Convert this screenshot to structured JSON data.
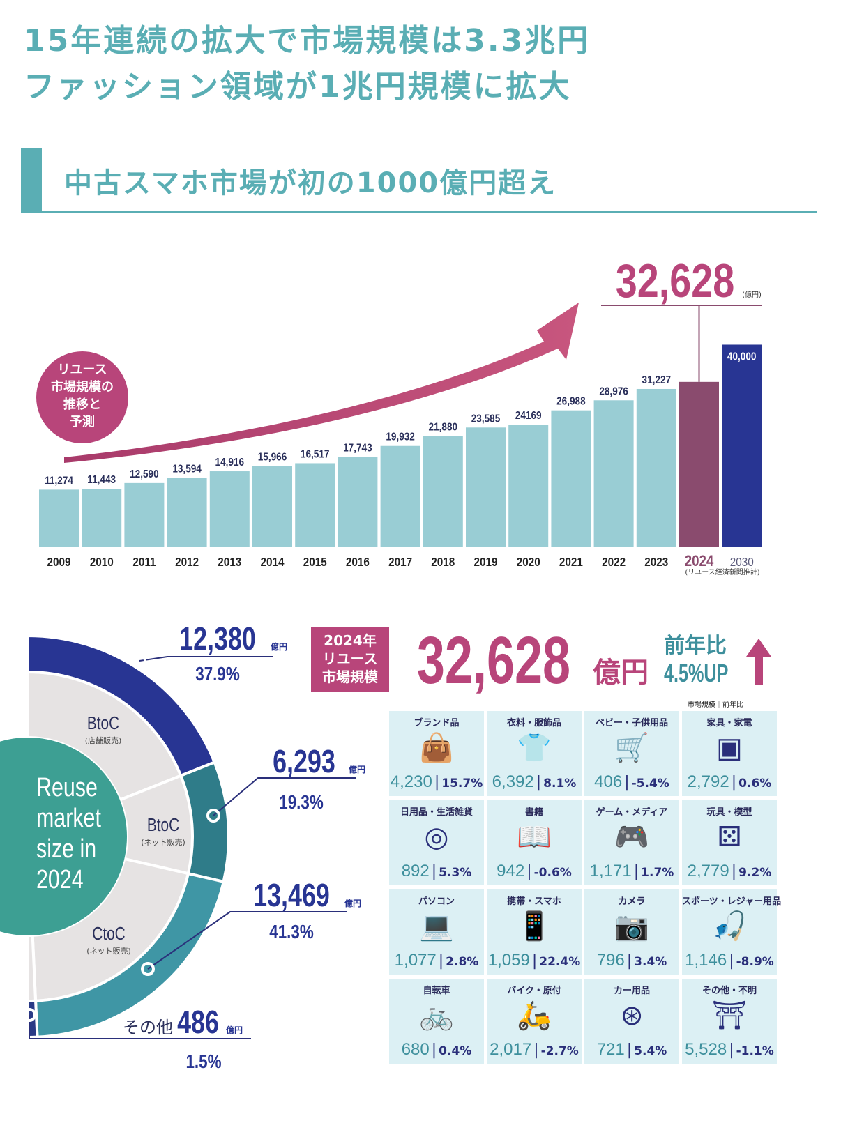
{
  "headline": {
    "line1": "15年連続の拡大で市場規模は3.3兆円",
    "line2": "ファッション領域が1兆円規模に拡大"
  },
  "section": {
    "title": "中古スマホ市場が初の1000億円超え"
  },
  "chart_data": [
    {
      "type": "bar",
      "title": "リユース市場規模の推移と予測",
      "categories": [
        "2009",
        "2010",
        "2011",
        "2012",
        "2013",
        "2014",
        "2015",
        "2016",
        "2017",
        "2018",
        "2019",
        "2020",
        "2021",
        "2022",
        "2023",
        "2024",
        "2030"
      ],
      "values": [
        11274,
        11443,
        12590,
        13594,
        14916,
        15966,
        16517,
        17743,
        19932,
        21880,
        23585,
        24169,
        26988,
        28976,
        31227,
        32628,
        40000
      ],
      "value_labels": [
        "11,274",
        "11,443",
        "12,590",
        "13,594",
        "14,916",
        "15,966",
        "16,517",
        "17,743",
        "19,932",
        "21,880",
        "23,585",
        "24169",
        "26,988",
        "28,976",
        "31,227",
        "",
        "40,000"
      ],
      "ylim": [
        0,
        42000
      ],
      "unit": "億円",
      "highlight": {
        "value": "32,628",
        "unit": "(億円)"
      },
      "note": "(リユース経済新聞推計)",
      "badge_lines": [
        "リユース",
        "市場規模の",
        "推移と",
        "予測"
      ],
      "colors": {
        "bar": "#99cdd4",
        "highlight": "#8a4b6e",
        "forecast": "#283593",
        "accent": "#b8457a"
      }
    },
    {
      "type": "pie",
      "title": "Reuse market size in 2024",
      "center_lines": [
        "Reuse",
        "market",
        "size in",
        "2024"
      ],
      "segments": [
        {
          "name": "BtoC",
          "sub": "(店舗販売)",
          "value": 12380,
          "value_label": "12,380",
          "unit": "億円",
          "pct": "37.9",
          "color": "#283593"
        },
        {
          "name": "BtoC",
          "sub": "(ネット販売)",
          "value": 6293,
          "value_label": "6,293",
          "unit": "億円",
          "pct": "19.3",
          "color": "#2f7c89"
        },
        {
          "name": "CtoC",
          "sub": "(ネット販売)",
          "value": 13469,
          "value_label": "13,469",
          "unit": "億円",
          "pct": "41.3",
          "color": "#3f96a5"
        },
        {
          "name": "その他",
          "sub": "",
          "value": 486,
          "value_label": "486",
          "unit": "億円",
          "pct": "1.5",
          "color": "#2a3a86"
        }
      ]
    }
  ],
  "summary": {
    "badge_lines": [
      "2024年",
      "リユース",
      "市場規模"
    ],
    "value": "32,628",
    "unit": "億円",
    "yoy_label": "前年比",
    "yoy_value": "4.5%UP",
    "tile_legend": "市場規模｜前年比"
  },
  "categories": [
    {
      "name": "ブランド品",
      "value": "4,230",
      "pct": "15.7%",
      "icon": "handbag-icon",
      "glyph": "👜"
    },
    {
      "name": "衣料・服飾品",
      "value": "6,392",
      "pct": "8.1%",
      "icon": "shirt-icon",
      "glyph": "👕"
    },
    {
      "name": "ベビー・子供用品",
      "value": "406",
      "pct": "-5.4%",
      "icon": "stroller-icon",
      "glyph": "🛒"
    },
    {
      "name": "家具・家電",
      "value": "2,792",
      "pct": "0.6%",
      "icon": "microwave-icon",
      "glyph": "▣"
    },
    {
      "name": "日用品・生活雑貨",
      "value": "892",
      "pct": "5.3%",
      "icon": "plate-icon",
      "glyph": "◎"
    },
    {
      "name": "書籍",
      "value": "942",
      "pct": "-0.6%",
      "icon": "book-icon",
      "glyph": "📖"
    },
    {
      "name": "ゲーム・メディア",
      "value": "1,171",
      "pct": "1.7%",
      "icon": "game-console-icon",
      "glyph": "🎮"
    },
    {
      "name": "玩具・模型",
      "value": "2,779",
      "pct": "9.2%",
      "icon": "toy-icon",
      "glyph": "⚄"
    },
    {
      "name": "パソコン",
      "value": "1,077",
      "pct": "2.8%",
      "icon": "laptop-icon",
      "glyph": "💻"
    },
    {
      "name": "携帯・スマホ",
      "value": "1,059",
      "pct": "22.4%",
      "icon": "smartphone-icon",
      "glyph": "📱"
    },
    {
      "name": "カメラ",
      "value": "796",
      "pct": "3.4%",
      "icon": "camera-icon",
      "glyph": "📷"
    },
    {
      "name": "スポーツ・レジャー用品",
      "value": "1,146",
      "pct": "-8.9%",
      "icon": "fishing-icon",
      "glyph": "🎣"
    },
    {
      "name": "自転車",
      "value": "680",
      "pct": "0.4%",
      "icon": "bicycle-icon",
      "glyph": "🚲"
    },
    {
      "name": "バイク・原付",
      "value": "2,017",
      "pct": "-2.7%",
      "icon": "scooter-icon",
      "glyph": "🛵"
    },
    {
      "name": "カー用品",
      "value": "721",
      "pct": "5.4%",
      "icon": "steering-wheel-icon",
      "glyph": "⊛"
    },
    {
      "name": "その他・不明",
      "value": "5,528",
      "pct": "-1.1%",
      "icon": "samurai-helmet-icon",
      "glyph": "⛩"
    }
  ]
}
